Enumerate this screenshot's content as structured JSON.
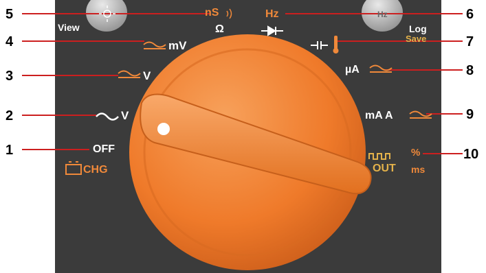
{
  "buttons": {
    "left": {
      "label": "View",
      "icon": "backlight-sun-icon"
    },
    "right": {
      "key_text": "Hz",
      "label_top": "Log",
      "label_bottom": "Save"
    }
  },
  "dial_positions": {
    "off": {
      "label": "OFF",
      "sub_label": "CHG",
      "icon": "battery-icon"
    },
    "ac_v": {
      "label": "V",
      "icon": "ac-wave-icon"
    },
    "dc_v": {
      "label": "V",
      "icon": "ac-dc-icon"
    },
    "mv": {
      "label": "mV",
      "icon": "ac-dc-icon"
    },
    "ohm": {
      "top": "nS",
      "bottom": "Ω",
      "icon": "continuity-icon"
    },
    "hz": {
      "top": "Hz",
      "icon": "diode-icon"
    },
    "cap_temp": {
      "icon": "capacitor-thermometer-icon"
    },
    "ua": {
      "label": "µA",
      "icon": "ac-dc-icon"
    },
    "ma_a": {
      "label": "mA A",
      "icon": "ac-dc-icon"
    },
    "out": {
      "top": "%",
      "label": "OUT",
      "sub_label": "ms",
      "icon": "square-wave-icon"
    }
  },
  "callouts": [
    "1",
    "2",
    "3",
    "4",
    "5",
    "6",
    "7",
    "8",
    "9",
    "10"
  ],
  "colors": {
    "panel": "#3b3b3b",
    "dial": "#f07a2c",
    "accent": "#f0893a",
    "line": "#cc1f1f"
  }
}
